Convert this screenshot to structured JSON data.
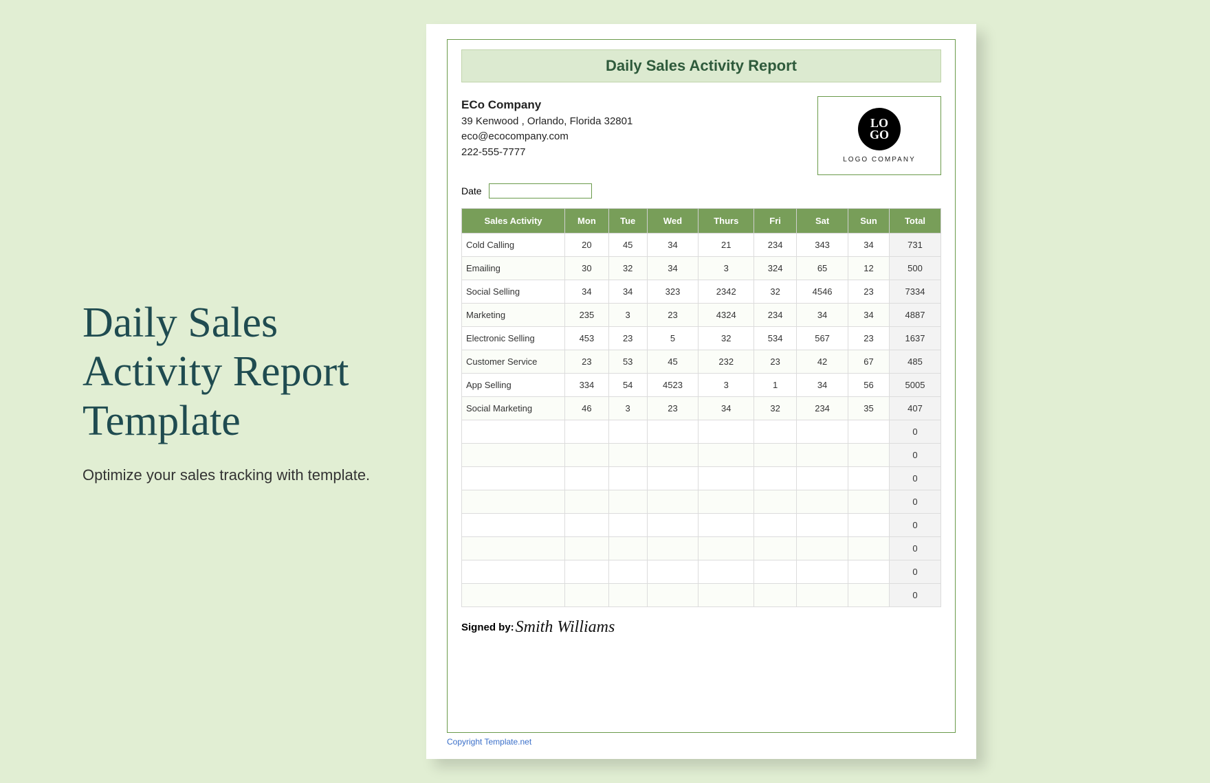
{
  "left": {
    "title_l1": "Daily Sales",
    "title_l2": "Activity Report",
    "title_l3": "Template",
    "subtitle": "Optimize your sales tracking with template."
  },
  "report": {
    "title": "Daily Sales Activity Report",
    "company_name": "ECo Company",
    "address": "39 Kenwood , Orlando, Florida 32801",
    "email": "eco@ecocompany.com",
    "phone": "222-555-7777",
    "logo_top": "LO",
    "logo_bottom": "GO",
    "logo_label": "LOGO COMPANY",
    "date_label": "Date",
    "signed_label": "Signed by:",
    "signature": "Smith Williams",
    "copyright": "Copyright Template.net"
  },
  "table": {
    "columns": [
      "Sales Activity",
      "Mon",
      "Tue",
      "Wed",
      "Thurs",
      "Fri",
      "Sat",
      "Sun",
      "Total"
    ],
    "header_bg": "#789e59",
    "header_color": "#ffffff",
    "total_bg": "#f3f3f3",
    "border_color": "#dcdcdc",
    "rows": [
      [
        "Cold Calling",
        "20",
        "45",
        "34",
        "21",
        "234",
        "343",
        "34",
        "731"
      ],
      [
        "Emailing",
        "30",
        "32",
        "34",
        "3",
        "324",
        "65",
        "12",
        "500"
      ],
      [
        "Social Selling",
        "34",
        "34",
        "323",
        "2342",
        "32",
        "4546",
        "23",
        "7334"
      ],
      [
        "Marketing",
        "235",
        "3",
        "23",
        "4324",
        "234",
        "34",
        "34",
        "4887"
      ],
      [
        "Electronic Selling",
        "453",
        "23",
        "5",
        "32",
        "534",
        "567",
        "23",
        "1637"
      ],
      [
        "Customer Service",
        "23",
        "53",
        "45",
        "232",
        "23",
        "42",
        "67",
        "485"
      ],
      [
        "App Selling",
        "334",
        "54",
        "4523",
        "3",
        "1",
        "34",
        "56",
        "5005"
      ],
      [
        "Social Marketing",
        "46",
        "3",
        "23",
        "34",
        "32",
        "234",
        "35",
        "407"
      ],
      [
        "",
        "",
        "",
        "",
        "",
        "",
        "",
        "",
        "0"
      ],
      [
        "",
        "",
        "",
        "",
        "",
        "",
        "",
        "",
        "0"
      ],
      [
        "",
        "",
        "",
        "",
        "",
        "",
        "",
        "",
        "0"
      ],
      [
        "",
        "",
        "",
        "",
        "",
        "",
        "",
        "",
        "0"
      ],
      [
        "",
        "",
        "",
        "",
        "",
        "",
        "",
        "",
        "0"
      ],
      [
        "",
        "",
        "",
        "",
        "",
        "",
        "",
        "",
        "0"
      ],
      [
        "",
        "",
        "",
        "",
        "",
        "",
        "",
        "",
        "0"
      ],
      [
        "",
        "",
        "",
        "",
        "",
        "",
        "",
        "",
        "0"
      ]
    ]
  },
  "colors": {
    "page_bg": "#e1eed3",
    "title_color": "#1f4b50",
    "accent_green": "#6a9a4a",
    "title_banner_bg": "#dcead0"
  }
}
